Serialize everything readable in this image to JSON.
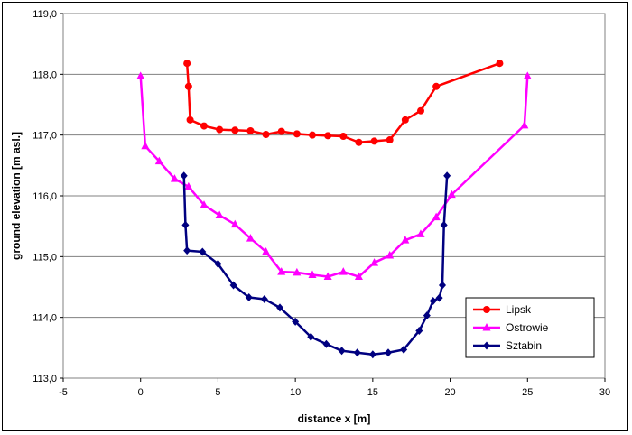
{
  "chart_data": {
    "type": "line",
    "xlabel": "distance x [m]",
    "ylabel": "ground elevation [m asl.]",
    "xlim": [
      -5,
      30
    ],
    "ylim": [
      113,
      119
    ],
    "x_ticks": [
      "-5",
      "0",
      "5",
      "10",
      "15",
      "20",
      "25",
      "30"
    ],
    "y_ticks": [
      "113,0",
      "114,0",
      "115,0",
      "116,0",
      "117,0",
      "118,0",
      "119,0"
    ],
    "grid": "horizontal",
    "legend_position": "bottom-right",
    "series": [
      {
        "name": "Lipsk",
        "color": "#ff0000",
        "marker": "circle",
        "points": [
          [
            3.0,
            118.18
          ],
          [
            3.1,
            117.8
          ],
          [
            3.2,
            117.25
          ],
          [
            4.1,
            117.15
          ],
          [
            5.1,
            117.09
          ],
          [
            6.1,
            117.08
          ],
          [
            7.1,
            117.07
          ],
          [
            8.1,
            117.01
          ],
          [
            9.1,
            117.06
          ],
          [
            10.1,
            117.02
          ],
          [
            11.1,
            117.0
          ],
          [
            12.1,
            116.99
          ],
          [
            13.1,
            116.98
          ],
          [
            14.1,
            116.88
          ],
          [
            15.1,
            116.9
          ],
          [
            16.1,
            116.92
          ],
          [
            17.1,
            117.25
          ],
          [
            18.1,
            117.4
          ],
          [
            19.1,
            117.8
          ],
          [
            23.2,
            118.18
          ]
        ]
      },
      {
        "name": "Ostrowie",
        "color": "#ff00ff",
        "marker": "triangle",
        "points": [
          [
            0.0,
            117.97
          ],
          [
            0.3,
            116.82
          ],
          [
            1.2,
            116.57
          ],
          [
            2.2,
            116.28
          ],
          [
            3.1,
            116.15
          ],
          [
            4.1,
            115.85
          ],
          [
            5.1,
            115.68
          ],
          [
            6.1,
            115.53
          ],
          [
            7.1,
            115.3
          ],
          [
            8.1,
            115.08
          ],
          [
            9.1,
            114.75
          ],
          [
            10.1,
            114.74
          ],
          [
            11.1,
            114.7
          ],
          [
            12.1,
            114.67
          ],
          [
            13.1,
            114.75
          ],
          [
            14.1,
            114.67
          ],
          [
            15.1,
            114.9
          ],
          [
            16.1,
            115.02
          ],
          [
            17.1,
            115.27
          ],
          [
            18.1,
            115.37
          ],
          [
            19.1,
            115.65
          ],
          [
            20.1,
            116.02
          ],
          [
            24.8,
            117.16
          ],
          [
            25.0,
            117.97
          ]
        ]
      },
      {
        "name": "Sztabin",
        "color": "#000080",
        "marker": "diamond",
        "points": [
          [
            2.8,
            116.33
          ],
          [
            2.9,
            115.52
          ],
          [
            3.0,
            115.1
          ],
          [
            4.0,
            115.08
          ],
          [
            5.0,
            114.88
          ],
          [
            6.0,
            114.53
          ],
          [
            7.0,
            114.33
          ],
          [
            8.0,
            114.3
          ],
          [
            9.0,
            114.16
          ],
          [
            10.0,
            113.93
          ],
          [
            11.0,
            113.68
          ],
          [
            12.0,
            113.56
          ],
          [
            13.0,
            113.45
          ],
          [
            14.0,
            113.42
          ],
          [
            15.0,
            113.39
          ],
          [
            16.0,
            113.42
          ],
          [
            17.0,
            113.47
          ],
          [
            18.0,
            113.78
          ],
          [
            18.5,
            114.03
          ],
          [
            18.9,
            114.27
          ],
          [
            19.3,
            114.32
          ],
          [
            19.5,
            114.53
          ],
          [
            19.6,
            115.52
          ],
          [
            19.8,
            116.33
          ]
        ]
      }
    ]
  }
}
